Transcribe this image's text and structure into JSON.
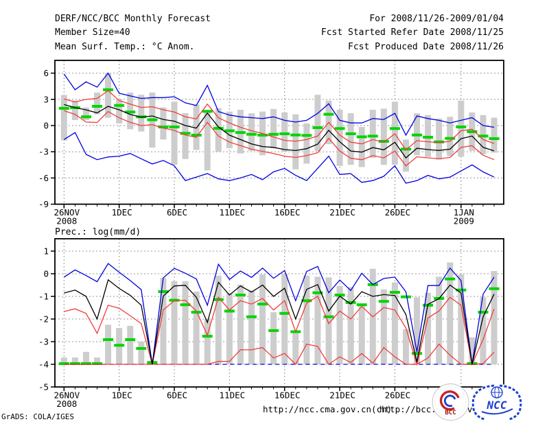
{
  "header": {
    "left1": "DERF/NCC/BCC Monthly Forecast",
    "left2": "Member Size=40",
    "right1": "For 2008/11/26-2009/01/04",
    "right2": "Fcst Started Refer Date 2008/11/25",
    "right3": "Fcst Produced Date 2008/11/26"
  },
  "footer": {
    "credit": "GrADS: COLA/IGES",
    "url_ncc": "http://ncc.cma.gov.cn(ch)",
    "url_bcc": "http://bcc.cma.gov.cn",
    "logo_bcc_label": "BCC",
    "logo_ncc_label": "NCC"
  },
  "colors": {
    "envelope_line": "#0000e0",
    "percentile_line": "#f23c3c",
    "mean_line": "#000000",
    "observation_dash": "#00d400",
    "spread_bar": "#cdcdcd",
    "grid": "#969696",
    "axis": "#000000",
    "logo_red": "#cc2222",
    "logo_blue": "#1a3fd1"
  },
  "chart_data": [
    {
      "type": "line",
      "name": "temperature-anomaly",
      "title": "Mean Surf. Temp.: °C Anom.",
      "xlabel": "",
      "ylabel": "",
      "ylim": [
        -9,
        7.46
      ],
      "yticks": [
        {
          "v": 6,
          "label": "6"
        },
        {
          "v": 3,
          "label": "3"
        },
        {
          "v": 0,
          "label": "0"
        },
        {
          "v": -3,
          "label": "-3"
        },
        {
          "v": -6,
          "label": "-6"
        },
        {
          "v": -9,
          "label": "-9"
        }
      ],
      "xticks": [
        {
          "day": 0,
          "label": "26NOV",
          "sublabel": "2008"
        },
        {
          "day": 5,
          "label": "1DEC"
        },
        {
          "day": 10,
          "label": "6DEC"
        },
        {
          "day": 15,
          "label": "11DEC"
        },
        {
          "day": 20,
          "label": "16DEC"
        },
        {
          "day": 25,
          "label": "21DEC"
        },
        {
          "day": 30,
          "label": "26DEC"
        },
        {
          "day": 36,
          "label": "1JAN",
          "sublabel": "2009"
        }
      ],
      "grid_days": [
        0,
        5,
        10,
        15,
        20,
        25,
        30,
        36
      ],
      "n_days": 40,
      "min_line_dashed": false,
      "series": {
        "max": [
          5.9,
          4.1,
          5.0,
          4.4,
          6.0,
          3.7,
          3.4,
          3.1,
          3.2,
          3.2,
          3.3,
          2.6,
          2.3,
          4.6,
          1.6,
          1.2,
          1.0,
          0.9,
          0.8,
          1.0,
          0.6,
          0.4,
          0.6,
          1.4,
          2.5,
          0.6,
          0.3,
          0.3,
          0.8,
          0.7,
          1.4,
          -1.1,
          1.1,
          0.8,
          0.6,
          0.3,
          0.6,
          0.9,
          0.0,
          -0.2
        ],
        "p75": [
          3.05,
          2.7,
          3.0,
          3.1,
          4.0,
          2.86,
          2.46,
          2.07,
          2.15,
          1.81,
          1.55,
          1.0,
          0.76,
          2.46,
          0.89,
          0.3,
          -0.2,
          -0.6,
          -0.9,
          -1.3,
          -1.7,
          -1.8,
          -1.6,
          -1.2,
          0.37,
          -1.1,
          -1.9,
          -2.1,
          -1.6,
          -1.9,
          -0.94,
          -2.78,
          -1.73,
          -1.85,
          -1.95,
          -1.8,
          -0.6,
          -0.42,
          -1.6,
          -2.05
        ],
        "mean": [
          2.4,
          2.05,
          1.8,
          1.45,
          2.2,
          1.81,
          1.28,
          0.95,
          1.1,
          0.7,
          0.5,
          0.0,
          -0.3,
          1.42,
          -0.16,
          -1.1,
          -1.6,
          -2.1,
          -2.4,
          -2.5,
          -2.75,
          -2.86,
          -2.65,
          -2.13,
          -0.55,
          -1.86,
          -2.91,
          -3.04,
          -2.52,
          -2.78,
          -1.92,
          -3.7,
          -2.6,
          -2.75,
          -2.85,
          -2.7,
          -1.5,
          -1.2,
          -2.5,
          -2.9
        ],
        "p25": [
          1.7,
          1.28,
          0.4,
          0.35,
          1.6,
          0.89,
          0.37,
          0.0,
          0.1,
          -0.29,
          -0.55,
          -1.08,
          -1.34,
          0.37,
          -1.21,
          -1.9,
          -2.3,
          -2.7,
          -2.95,
          -3.2,
          -3.5,
          -3.65,
          -3.44,
          -3.12,
          -1.47,
          -2.91,
          -3.75,
          -3.91,
          -3.44,
          -3.7,
          -2.91,
          -4.62,
          -3.57,
          -3.7,
          -3.8,
          -3.65,
          -2.5,
          -2.3,
          -3.4,
          -3.9
        ],
        "min": [
          -1.6,
          -0.8,
          -3.3,
          -3.9,
          -3.6,
          -3.5,
          -3.2,
          -3.8,
          -4.4,
          -4.0,
          -4.6,
          -6.3,
          -5.9,
          -5.5,
          -6.1,
          -6.3,
          -6.0,
          -5.6,
          -6.2,
          -5.3,
          -4.9,
          -5.7,
          -6.3,
          -4.9,
          -3.5,
          -5.6,
          -5.5,
          -6.5,
          -6.3,
          -5.8,
          -4.6,
          -6.6,
          -6.3,
          -5.7,
          -6.1,
          -5.9,
          -5.2,
          -4.5,
          -5.3,
          -5.9
        ]
      },
      "observation": [
        1.97,
        2.05,
        1.0,
        2.2,
        4.1,
        2.3,
        1.55,
        1.0,
        0.66,
        -0.16,
        -0.16,
        -0.89,
        -1.1,
        1.63,
        -0.32,
        -0.6,
        -0.8,
        -1.0,
        -1.1,
        -1.0,
        -0.94,
        -1.08,
        -1.13,
        -0.24,
        1.29,
        -0.34,
        -0.94,
        -1.29,
        -1.21,
        -1.81,
        -0.34,
        -2.7,
        -1.08,
        -1.34,
        -1.87,
        -1.47,
        -0.16,
        -0.7,
        -1.2,
        -1.5
      ],
      "bars_top": [
        3.5,
        2.86,
        2.07,
        3.78,
        6.0,
        2.99,
        3.78,
        3.52,
        3.78,
        2.07,
        2.73,
        1.42,
        2.4,
        1.68,
        2.0,
        1.6,
        1.8,
        1.4,
        1.6,
        1.9,
        1.5,
        1.29,
        0.24,
        3.52,
        2.86,
        1.81,
        1.42,
        -0.16,
        1.81,
        1.94,
        2.73,
        -1.6,
        1.4,
        1.2,
        0.8,
        1.0,
        2.86,
        1.5,
        1.2,
        0.9
      ],
      "bars_bottom": [
        -1.7,
        0.63,
        0.63,
        1.28,
        0.89,
        0.24,
        -0.42,
        -0.68,
        -2.52,
        -1.6,
        -4.49,
        -3.83,
        -2.8,
        -5.14,
        -3.0,
        -2.6,
        -3.2,
        -2.9,
        -3.4,
        -2.6,
        -3.0,
        -5.01,
        -4.36,
        -2.91,
        -2.13,
        -4.62,
        -4.49,
        -4.75,
        -3.7,
        -4.5,
        -4.49,
        -5.28,
        -3.4,
        -3.6,
        -3.9,
        -3.5,
        -3.57,
        -2.9,
        -3.3,
        -3.1
      ]
    },
    {
      "type": "line",
      "name": "precipitation",
      "title": "Prec.: log(mm/d)",
      "xlabel": "",
      "ylabel": "",
      "ylim": [
        -5,
        1.55
      ],
      "yticks": [
        {
          "v": 1,
          "label": "1"
        },
        {
          "v": 0,
          "label": "0"
        },
        {
          "v": -1,
          "label": "-1"
        },
        {
          "v": -2,
          "label": "-2"
        },
        {
          "v": -3,
          "label": "-3"
        },
        {
          "v": -4,
          "label": "-4"
        },
        {
          "v": -5,
          "label": "-5"
        }
      ],
      "xticks": [
        {
          "day": 0,
          "label": "26NOV",
          "sublabel": "2008"
        },
        {
          "day": 5,
          "label": "1DEC"
        },
        {
          "day": 10,
          "label": "6DEC"
        },
        {
          "day": 15,
          "label": "11DEC"
        },
        {
          "day": 20,
          "label": "16DEC"
        },
        {
          "day": 25,
          "label": "21DEC"
        },
        {
          "day": 30,
          "label": "26DEC"
        }
      ],
      "grid_days": [
        0,
        5,
        10,
        15,
        20,
        25,
        30,
        36
      ],
      "n_days": 40,
      "min_line_dashed": true,
      "series": {
        "max": [
          -0.15,
          0.17,
          -0.08,
          -0.35,
          0.45,
          0.07,
          -0.3,
          -0.7,
          -4.0,
          -0.18,
          0.24,
          0.02,
          -0.23,
          -1.39,
          0.42,
          -0.25,
          0.12,
          -0.16,
          0.25,
          -0.2,
          0.14,
          -1.19,
          0.1,
          0.32,
          -0.84,
          -0.28,
          -0.74,
          0.02,
          -0.48,
          -0.21,
          -0.15,
          -0.8,
          -3.45,
          -0.52,
          -0.52,
          0.25,
          -0.3,
          -4.0,
          -0.9,
          -0.15
        ],
        "p75": [
          -1.67,
          -1.55,
          -1.75,
          -2.63,
          -1.39,
          -1.52,
          -1.85,
          -2.2,
          -4.0,
          -1.6,
          -1.19,
          -1.17,
          -1.65,
          -2.71,
          -1.04,
          -1.6,
          -1.19,
          -1.34,
          -1.09,
          -1.6,
          -1.19,
          -2.56,
          -1.3,
          -0.99,
          -2.2,
          -1.65,
          -2.0,
          -1.44,
          -1.9,
          -1.49,
          -1.6,
          -2.4,
          -4.0,
          -1.95,
          -1.65,
          -1.04,
          -1.39,
          -4.0,
          -2.9,
          -1.55
        ],
        "mean": [
          -0.85,
          -0.72,
          -1.0,
          -2.0,
          -0.27,
          -0.65,
          -0.95,
          -1.39,
          -4.0,
          -0.99,
          -0.54,
          -0.51,
          -1.04,
          -2.15,
          -0.38,
          -0.94,
          -0.54,
          -0.81,
          -0.5,
          -1.0,
          -0.64,
          -2.0,
          -0.69,
          -0.48,
          -1.65,
          -0.99,
          -1.34,
          -0.79,
          -1.0,
          -0.92,
          -0.96,
          -1.8,
          -3.9,
          -1.35,
          -1.1,
          -0.5,
          -0.85,
          -4.0,
          -1.9,
          -0.9
        ],
        "p25": [
          -4,
          -4,
          -4,
          -4,
          -4,
          -4,
          -4,
          -4,
          -4,
          -4,
          -4,
          -4,
          -4,
          -4,
          -3.87,
          -3.87,
          -3.36,
          -3.36,
          -3.26,
          -3.72,
          -3.52,
          -4.0,
          -3.11,
          -3.21,
          -4.0,
          -3.67,
          -3.92,
          -3.52,
          -3.95,
          -3.26,
          -3.67,
          -4.0,
          -4.0,
          -3.72,
          -3.11,
          -3.6,
          -4.0,
          -4.0,
          -3.97,
          -3.46
        ],
        "min": [
          -4,
          -4,
          -4,
          -4,
          -4,
          -4,
          -4,
          -4,
          -4,
          -4,
          -4,
          -4,
          -4,
          -4,
          -4,
          -4,
          -4,
          -4,
          -4,
          -4,
          -4,
          -4,
          -4,
          -4,
          -4,
          -4,
          -4,
          -4,
          -4,
          -4,
          -4,
          -4,
          -4,
          -4,
          -4,
          -4,
          -4,
          -4,
          -4,
          -4
        ]
      },
      "observation": [
        -3.97,
        -3.97,
        -3.97,
        -3.97,
        -2.91,
        -3.16,
        -2.91,
        -3.3,
        -3.92,
        -0.79,
        -1.17,
        -1.37,
        -1.7,
        -2.76,
        -1.14,
        -1.65,
        -0.94,
        -1.9,
        -1.34,
        -2.51,
        -1.75,
        -2.56,
        -1.19,
        -0.84,
        -1.9,
        -0.94,
        -1.27,
        -1.37,
        -0.48,
        -1.22,
        -0.82,
        -1.02,
        -3.52,
        -1.39,
        -1.09,
        -0.23,
        -0.72,
        -3.97,
        -1.7,
        -0.66
      ],
      "bars_top": [
        -3.7,
        -3.7,
        -3.45,
        -3.7,
        -2.25,
        -2.4,
        -2.3,
        -3.0,
        -3.85,
        -0.18,
        -0.33,
        -0.33,
        -0.79,
        -2.0,
        -0.08,
        -0.84,
        -0.48,
        -0.74,
        -0.03,
        -1.7,
        0.0,
        -2.56,
        -0.08,
        -0.13,
        -0.16,
        -0.54,
        -0.59,
        -1.39,
        0.22,
        -0.69,
        -0.38,
        -2.45,
        -1.04,
        -0.84,
        -0.13,
        0.5,
        -0.03,
        -2.81,
        -1.04,
        0.12
      ],
      "bars_bottom": [
        -4,
        -4,
        -4,
        -4,
        -4,
        -4,
        -4,
        -4,
        -4,
        -4,
        -4,
        -4,
        -4,
        -4,
        -4,
        -4,
        -4,
        -4,
        -4,
        -4,
        -4,
        -4,
        -4,
        -4,
        -4,
        -4,
        -4,
        -4,
        -4,
        -4,
        -4,
        -4,
        -4,
        -4,
        -4,
        -4,
        -4,
        -4,
        -4,
        -4
      ]
    }
  ]
}
